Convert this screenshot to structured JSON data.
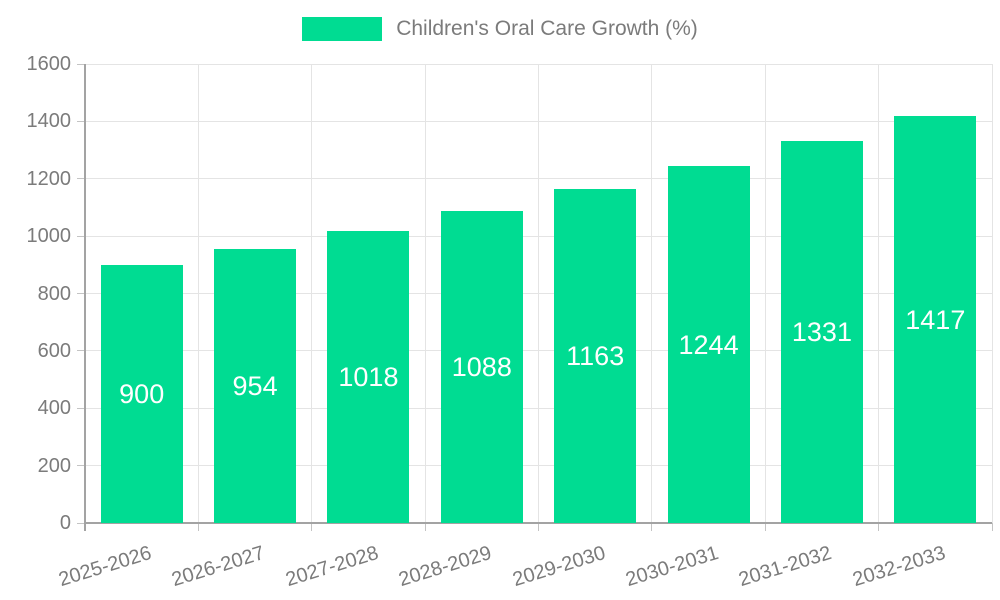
{
  "chart_data": {
    "type": "bar",
    "title": "",
    "legend": {
      "label": "Children's Oral Care Growth (%)",
      "position": "top"
    },
    "categories": [
      "2025-2026",
      "2026-2027",
      "2027-2028",
      "2028-2029",
      "2029-2030",
      "2030-2031",
      "2031-2032",
      "2032-2033"
    ],
    "values": [
      900,
      954,
      1018,
      1088,
      1163,
      1244,
      1331,
      1417
    ],
    "bar_value_labels": [
      "900",
      "954",
      "1018",
      "1088",
      "1163",
      "1244",
      "1331",
      "1417"
    ],
    "xlabel": "",
    "ylabel": "",
    "ylim": [
      0,
      1600
    ],
    "ytick_step": 200,
    "yticks": [
      "0",
      "200",
      "400",
      "600",
      "800",
      "1000",
      "1200",
      "1400",
      "1600"
    ],
    "grid": true,
    "colors": {
      "bar": "#00DC92",
      "grid": "#e4e4e4",
      "axis": "#a3a3a3",
      "tick": "#c4c4c4",
      "text": "#7b7b7b",
      "value_label": "#ffffff"
    }
  }
}
